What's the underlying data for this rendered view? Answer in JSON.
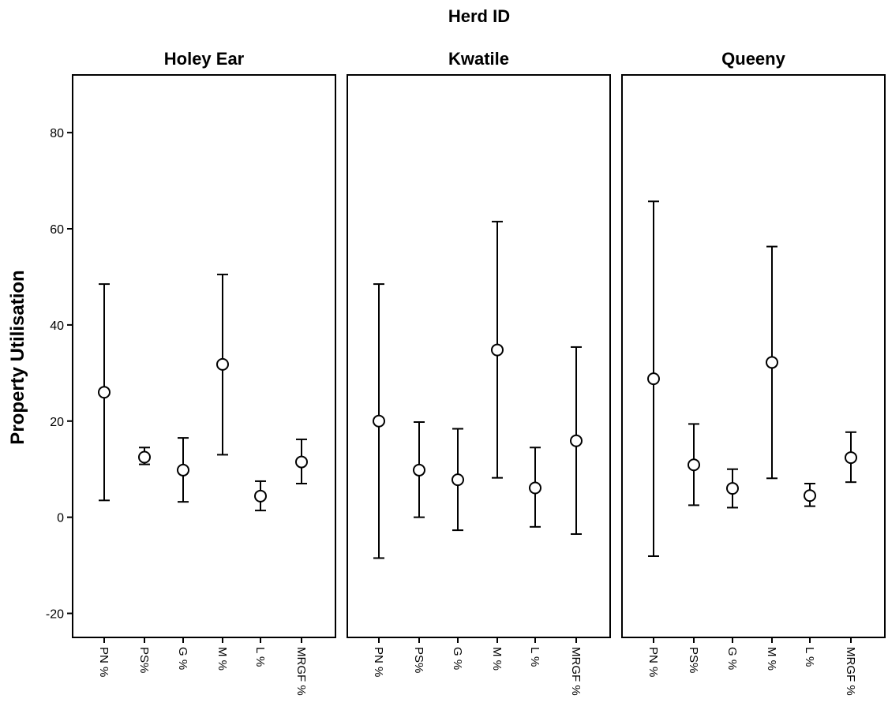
{
  "chart_data": {
    "type": "scatter",
    "title": "Herd ID",
    "ylabel": "Property Utilisation",
    "xlabel": "",
    "ylim": [
      -25,
      92
    ],
    "yticks": [
      -20,
      0,
      20,
      40,
      60,
      80
    ],
    "grid": false,
    "categories": [
      "PN %",
      "PS%",
      "G %",
      "M %",
      "L %",
      "MRGF %"
    ],
    "panels": [
      {
        "name": "Holey Ear",
        "means": [
          26,
          12.5,
          9.8,
          31.8,
          4.4,
          11.5
        ],
        "lower": [
          3.5,
          11,
          3.2,
          13,
          1.4,
          7
        ],
        "upper": [
          48.5,
          14.5,
          16.5,
          50.5,
          7.5,
          16.2
        ]
      },
      {
        "name": "Kwatile",
        "means": [
          20,
          9.8,
          7.8,
          34.8,
          6.1,
          15.9
        ],
        "lower": [
          -8.5,
          0,
          -2.7,
          8.2,
          -2,
          -3.5
        ],
        "upper": [
          48.5,
          19.8,
          18.4,
          61.5,
          14.5,
          35.4
        ]
      },
      {
        "name": "Queeny",
        "means": [
          28.8,
          10.9,
          6,
          32.2,
          4.5,
          12.4
        ],
        "lower": [
          -8.1,
          2.5,
          2,
          8.1,
          2.3,
          7.3
        ],
        "upper": [
          65.7,
          19.4,
          10,
          56.3,
          7,
          17.7
        ]
      }
    ]
  }
}
